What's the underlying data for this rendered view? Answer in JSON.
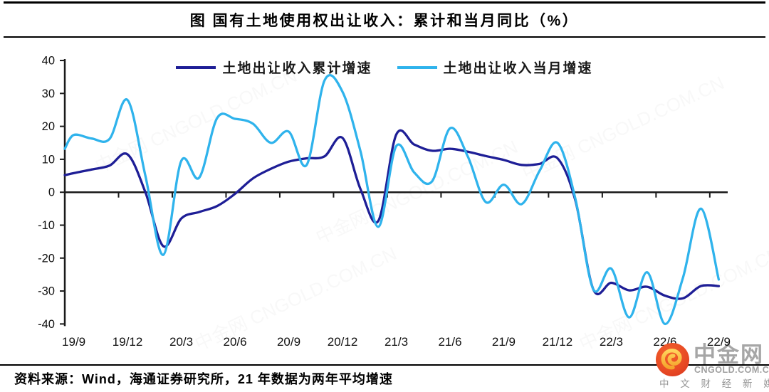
{
  "header": {
    "title": "图  国有土地使用权出让收入：累计和当月同比（%）"
  },
  "chart_data": {
    "type": "line",
    "title": "国有土地使用权出让收入：累计和当月同比（%）",
    "xlabel": "",
    "ylabel": "",
    "ylim": [
      -40,
      40
    ],
    "ytick_step": 10,
    "grid": false,
    "legend_position": "top-center",
    "y_ticks": [
      40,
      30,
      20,
      10,
      0,
      -10,
      -20,
      -30,
      -40
    ],
    "x_tick_labels": [
      "19/9",
      "19/12",
      "20/3",
      "20/6",
      "20/9",
      "20/12",
      "21/3",
      "21/6",
      "21/9",
      "21/12",
      "22/3",
      "22/6",
      "22/9"
    ],
    "months": [
      "19/9",
      "19/10",
      "19/11",
      "19/12",
      "20/1",
      "20/2",
      "20/3",
      "20/4",
      "20/5",
      "20/6",
      "20/7",
      "20/8",
      "20/9",
      "20/10",
      "20/11",
      "20/12",
      "21/1",
      "21/2",
      "21/3",
      "21/4",
      "21/5",
      "21/6",
      "21/7",
      "21/8",
      "21/9",
      "21/10",
      "21/11",
      "21/12",
      "22/1",
      "22/2",
      "22/3",
      "22/4",
      "22/5",
      "22/6",
      "22/7",
      "22/8",
      "22/9"
    ],
    "series": [
      {
        "name": "土地出让收入累计增速",
        "color": "#1E1E96",
        "edge_value": 5.2,
        "values": [
          5.8,
          6.9,
          8.1,
          11.5,
          0,
          -16.4,
          -8,
          -6,
          -4.2,
          -0.5,
          4.2,
          7.1,
          9.3,
          10.3,
          10.9,
          16.5,
          1,
          -8.7,
          17.5,
          14.5,
          12.6,
          13.2,
          12.3,
          11,
          9.8,
          8.3,
          8.6,
          10.3,
          -2.5,
          -29.5,
          -27.5,
          -29.8,
          -28.7,
          -31.4,
          -32.2,
          -28.5,
          -28.5
        ]
      },
      {
        "name": "土地出让收入当月增速",
        "color": "#2FB3EC",
        "edge_value": 13.2,
        "values": [
          17.4,
          16.3,
          16.2,
          28,
          5,
          -19,
          9.5,
          4.4,
          22.5,
          22.3,
          20.8,
          15,
          18.4,
          8.3,
          34,
          30.5,
          12.5,
          -10.5,
          14,
          6,
          3.3,
          19.4,
          10.8,
          -3,
          2.3,
          -3.6,
          6.5,
          15,
          -2,
          -29.5,
          -23.2,
          -38,
          -24.3,
          -40,
          -26,
          -5,
          -26.5
        ]
      }
    ]
  },
  "footer": {
    "source_note": "资料来源：Wind，海通证券研究所，21 年数据为两年平均增速"
  },
  "logo": {
    "brand": "中金网",
    "domain": "CNGOLD.COM.CN",
    "tagline": "中 文 财 经 新 媒 体",
    "circle_color_outer": "#dd3c20",
    "circle_color_inner": "#f2612b",
    "swirl_color": "#ffc63e"
  },
  "watermark_text": "中金网 CNGOLD.COM.CN"
}
